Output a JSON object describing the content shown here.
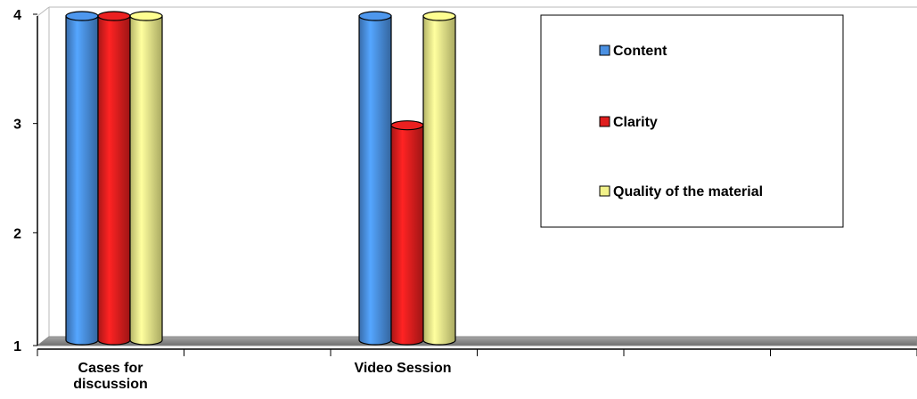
{
  "chart_data": {
    "type": "bar",
    "style": "3d-cylinder",
    "title": "",
    "xlabel": "",
    "ylabel": "",
    "categories": [
      "Cases for discussion",
      "Video Session"
    ],
    "series": [
      {
        "name": "Content",
        "values": [
          4,
          4
        ],
        "color": "#4A90E2"
      },
      {
        "name": "Clarity",
        "values": [
          4,
          3
        ],
        "color": "#E01E1E"
      },
      {
        "name": "Quality of the material",
        "values": [
          4,
          4
        ],
        "color": "#F2F28A"
      }
    ],
    "yticks": [
      "1",
      "2",
      "3",
      "4"
    ],
    "ylim": [
      1,
      4
    ],
    "category_slots": 6,
    "legend_position": "top-right",
    "grid": false
  }
}
